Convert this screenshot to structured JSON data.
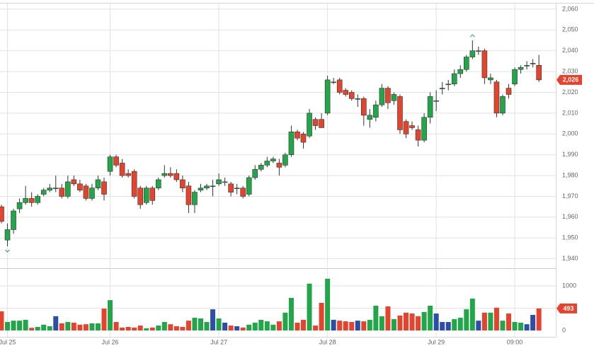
{
  "chart_data": {
    "type": "candlestick",
    "categories": [
      null,
      "Jul 25",
      null,
      null,
      null,
      null,
      null,
      null,
      null,
      null,
      null,
      null,
      null,
      null,
      null,
      null,
      null,
      null,
      "Jul 26",
      null,
      null,
      null,
      null,
      null,
      null,
      null,
      null,
      null,
      null,
      null,
      null,
      null,
      null,
      null,
      null,
      null,
      "Jul 27",
      null,
      null,
      null,
      null,
      null,
      null,
      null,
      null,
      null,
      null,
      null,
      null,
      null,
      null,
      null,
      null,
      null,
      "Jul 28",
      null,
      null,
      null,
      null,
      null,
      null,
      null,
      null,
      null,
      null,
      null,
      null,
      null,
      null,
      null,
      null,
      null,
      "Jul 29",
      null,
      null,
      null,
      null,
      null,
      null,
      null,
      null,
      null,
      null,
      null,
      null,
      "09:00",
      null,
      null,
      null,
      null
    ],
    "open": [
      1965,
      1949,
      1954,
      1964,
      1967,
      1969,
      1967,
      1971,
      1973,
      1974,
      1974,
      1970,
      1978,
      1976,
      1975,
      1969,
      1974,
      1977,
      1982,
      1989,
      1986,
      1981,
      1982,
      1974,
      1967,
      1974,
      1974,
      1980,
      1981,
      1981,
      1978,
      1975,
      1966,
      1973,
      1974,
      1975,
      1976,
      1977,
      1976,
      1974,
      1974,
      1971,
      1979,
      1983,
      1985,
      1987,
      1986,
      1985,
      1990,
      2001,
      2000,
      1999,
      2007,
      2007,
      2010,
      2025,
      2026,
      2021,
      2020,
      2017,
      2017,
      2007,
      2008,
      2014,
      2022,
      2016,
      2018,
      2006,
      2004,
      2002,
      1997,
      2008,
      2016,
      2022,
      2024,
      2024,
      2029,
      2031,
      2037,
      2040,
      2040,
      2026,
      2025,
      2010,
      2022,
      2024,
      2031,
      2033,
      2034,
      2033
    ],
    "high": [
      1966,
      1957,
      1964,
      1969,
      1975,
      1972,
      1971,
      1974,
      1976,
      1980,
      1976,
      1980,
      1980,
      1978,
      1976,
      1976,
      1980,
      1979,
      1990,
      1990,
      1988,
      1983,
      1983,
      1975,
      1975,
      1975,
      1979,
      1985,
      1984,
      1983,
      1980,
      1977,
      1973,
      1976,
      1976,
      1978,
      1981,
      1979,
      1977,
      1976,
      1975,
      1980,
      1985,
      1986,
      1989,
      1989,
      1988,
      1991,
      2004,
      2002,
      2001,
      2012,
      2008,
      2010,
      2028,
      2027,
      2027,
      2022,
      2021,
      2019,
      2018,
      2012,
      2016,
      2024,
      2023,
      2020,
      2019,
      2007,
      2006,
      2004,
      2010,
      2020,
      2021,
      2025,
      2026,
      2031,
      2033,
      2038,
      2045,
      2042,
      2041,
      2029,
      2026,
      2019,
      2024,
      2032,
      2033,
      2035,
      2036,
      2038
    ],
    "low": [
      1957,
      1946,
      1952,
      1962,
      1966,
      1965,
      1966,
      1970,
      1972,
      1972,
      1969,
      1969,
      1975,
      1972,
      1968,
      1968,
      1973,
      1968,
      1980,
      1984,
      1979,
      1979,
      1969,
      1964,
      1966,
      1966,
      1973,
      1979,
      1979,
      1977,
      1972,
      1962,
      1962,
      1972,
      1973,
      1970,
      1975,
      1975,
      1970,
      1971,
      1969,
      1970,
      1978,
      1982,
      1984,
      1986,
      1980,
      1984,
      1989,
      1997,
      1993,
      1998,
      2002,
      2003,
      2009,
      2024,
      2019,
      2018,
      2016,
      2013,
      2004,
      2003,
      2006,
      2013,
      2012,
      2014,
      2000,
      1998,
      2002,
      1994,
      1996,
      2005,
      2011,
      2019,
      2021,
      2023,
      2027,
      2030,
      2036,
      2038,
      2024,
      2024,
      2008,
      2009,
      2017,
      2023,
      2029,
      2031,
      2032,
      2025
    ],
    "close": [
      1958,
      1954,
      1963,
      1967,
      1969,
      1967,
      1970,
      1973,
      1974,
      1974,
      1970,
      1977,
      1976,
      1973,
      1969,
      1974,
      1978,
      1971,
      1989,
      1985,
      1980,
      1980,
      1970,
      1966,
      1974,
      1968,
      1978,
      1981,
      1980,
      1978,
      1974,
      1966,
      1972,
      1974,
      1975,
      1975,
      1978,
      1977,
      1972,
      1974,
      1970,
      1979,
      1983,
      1985,
      1987,
      1988,
      1984,
      1990,
      2001,
      1998,
      1996,
      2010,
      2004,
      2003,
      2026,
      2025,
      2020,
      2019,
      2017,
      2017,
      2009,
      2009,
      2014,
      2022,
      2015,
      2019,
      2002,
      2000,
      2003,
      1997,
      2008,
      2018,
      2016,
      2022,
      2024,
      2029,
      2031,
      2037,
      2040,
      2040,
      2027,
      2027,
      2010,
      2018,
      2019,
      2031,
      2032,
      2033,
      2034,
      2026
    ],
    "volume": [
      430,
      190,
      220,
      220,
      240,
      60,
      80,
      130,
      95,
      320,
      160,
      190,
      175,
      130,
      140,
      160,
      160,
      490,
      680,
      190,
      65,
      80,
      65,
      110,
      50,
      65,
      110,
      190,
      140,
      95,
      80,
      220,
      285,
      270,
      190,
      475,
      270,
      175,
      110,
      95,
      65,
      130,
      175,
      240,
      205,
      130,
      205,
      400,
      730,
      175,
      240,
      1050,
      110,
      620,
      1160,
      240,
      220,
      205,
      190,
      220,
      205,
      240,
      555,
      320,
      540,
      255,
      335,
      400,
      380,
      320,
      415,
      555,
      380,
      190,
      190,
      255,
      285,
      475,
      715,
      220,
      400,
      400,
      510,
      220,
      380,
      190,
      175,
      140,
      350,
      493
    ],
    "up_color": "#21a649",
    "down_color": "#e4432d",
    "flat_color": "#2c4ea6",
    "ylim": [
      1935.8,
      2062.7
    ],
    "yticks": [
      {
        "value": 1940,
        "label": "1,940"
      },
      {
        "value": 1950,
        "label": "1,950"
      },
      {
        "value": 1960,
        "label": "1,960"
      },
      {
        "value": 1970,
        "label": "1,970"
      },
      {
        "value": 1980,
        "label": "1,980"
      },
      {
        "value": 1990,
        "label": "1,990"
      },
      {
        "value": 2000,
        "label": "2,000"
      },
      {
        "value": 2010,
        "label": "2,010"
      },
      {
        "value": 2020,
        "label": "2,020"
      },
      {
        "value": 2030,
        "label": "2,030"
      },
      {
        "value": 2040,
        "label": "2,040"
      },
      {
        "value": 2050,
        "label": "2,050"
      },
      {
        "value": 2060,
        "label": "2,060"
      }
    ],
    "volume_ylim": [
      0,
      1380
    ],
    "volume_yticks": [
      0,
      500,
      1000
    ],
    "last_price": {
      "value": 2026,
      "label": "2,026"
    },
    "last_volume": 493,
    "grid": true
  }
}
